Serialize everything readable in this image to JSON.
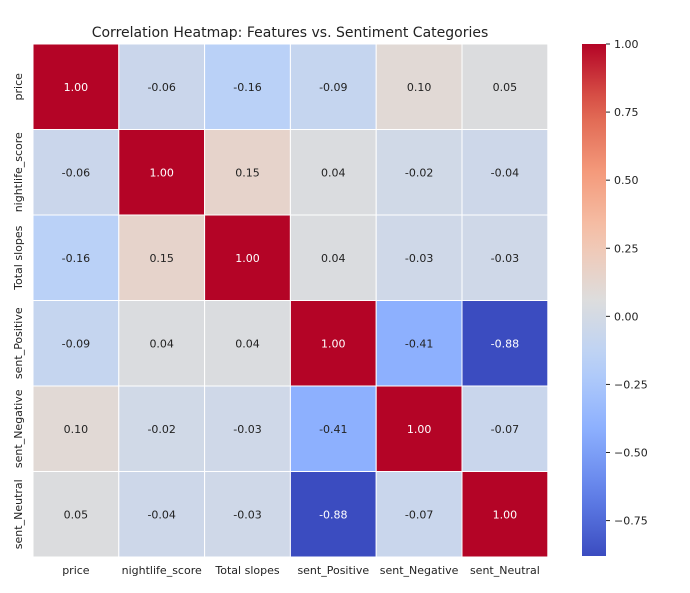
{
  "chart_data": {
    "type": "heatmap",
    "title": "Correlation Heatmap: Features vs. Sentiment Categories",
    "xlabel": "",
    "ylabel": "",
    "x_categories": [
      "price",
      "nightlife_score",
      "Total slopes",
      "sent_Positive",
      "sent_Negative",
      "sent_Neutral"
    ],
    "y_categories": [
      "price",
      "nightlife_score",
      "Total slopes",
      "sent_Positive",
      "sent_Negative",
      "sent_Neutral"
    ],
    "values": [
      [
        1.0,
        -0.06,
        -0.16,
        -0.09,
        0.1,
        0.05
      ],
      [
        -0.06,
        1.0,
        0.15,
        0.04,
        -0.02,
        -0.04
      ],
      [
        -0.16,
        0.15,
        1.0,
        0.04,
        -0.03,
        -0.03
      ],
      [
        -0.09,
        0.04,
        0.04,
        1.0,
        -0.41,
        -0.88
      ],
      [
        0.1,
        -0.02,
        -0.03,
        -0.41,
        1.0,
        -0.07
      ],
      [
        0.05,
        -0.04,
        -0.03,
        -0.88,
        -0.07,
        1.0
      ]
    ],
    "annotation_format": "2 decimals",
    "colormap": "coolwarm",
    "value_range": [
      -0.88,
      1.0
    ],
    "colorbar": {
      "ticks": [
        -0.75,
        -0.5,
        -0.25,
        0.0,
        0.25,
        0.5,
        0.75,
        1.0
      ],
      "tick_labels": [
        "−0.75",
        "−0.50",
        "−0.25",
        "0.00",
        "0.25",
        "0.50",
        "0.75",
        "1.00"
      ]
    },
    "grid": false,
    "legend": "colorbar-right"
  }
}
